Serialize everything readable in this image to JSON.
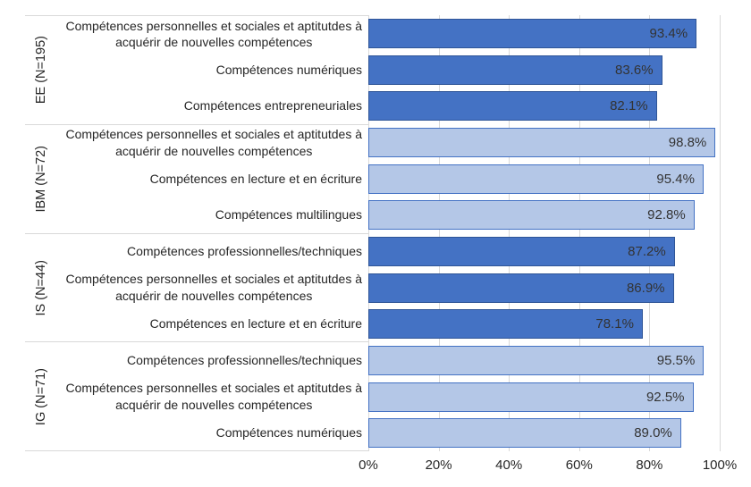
{
  "chart_data": {
    "type": "bar",
    "orientation": "horizontal",
    "title": "",
    "xlabel": "",
    "ylabel": "",
    "xlim": [
      0,
      100
    ],
    "grid": true,
    "legend": "none",
    "x_ticks": [
      "0%",
      "20%",
      "40%",
      "60%",
      "80%",
      "100%"
    ],
    "groups": [
      {
        "name": "EE (N=195)",
        "shade": "dark",
        "bars": [
          {
            "label_lines": [
              "Compétences personnelles et sociales et aptitutdes à",
              "acquérir de nouvelles compétences"
            ],
            "value": 93.4,
            "value_label": "93.4%"
          },
          {
            "label_lines": [
              "Compétences numériques"
            ],
            "value": 83.6,
            "value_label": "83.6%"
          },
          {
            "label_lines": [
              "Compétences entrepreneuriales"
            ],
            "value": 82.1,
            "value_label": "82.1%"
          }
        ]
      },
      {
        "name": "IBM (N=72)",
        "shade": "light",
        "bars": [
          {
            "label_lines": [
              "Compétences personnelles et sociales et aptitutdes à",
              "acquérir de nouvelles compétences"
            ],
            "value": 98.8,
            "value_label": "98.8%"
          },
          {
            "label_lines": [
              "Compétences en lecture et en écriture"
            ],
            "value": 95.4,
            "value_label": "95.4%"
          },
          {
            "label_lines": [
              "Compétences multilingues"
            ],
            "value": 92.8,
            "value_label": "92.8%"
          }
        ]
      },
      {
        "name": "IS (N=44)",
        "shade": "dark",
        "bars": [
          {
            "label_lines": [
              "Compétences professionnelles/techniques"
            ],
            "value": 87.2,
            "value_label": "87.2%"
          },
          {
            "label_lines": [
              "Compétences personnelles et sociales et aptitutdes à",
              "acquérir de nouvelles compétences"
            ],
            "value": 86.9,
            "value_label": "86.9%"
          },
          {
            "label_lines": [
              "Compétences en lecture et en écriture"
            ],
            "value": 78.1,
            "value_label": "78.1%"
          }
        ]
      },
      {
        "name": "IG (N=71)",
        "shade": "light",
        "bars": [
          {
            "label_lines": [
              "Compétences professionnelles/techniques"
            ],
            "value": 95.5,
            "value_label": "95.5%"
          },
          {
            "label_lines": [
              "Compétences personnelles et sociales et aptitutdes à",
              "acquérir de nouvelles compétences"
            ],
            "value": 92.5,
            "value_label": "92.5%"
          },
          {
            "label_lines": [
              "Compétences numériques"
            ],
            "value": 89.0,
            "value_label": "89.0%"
          }
        ]
      }
    ],
    "colors": {
      "dark_fill": "#4472C4",
      "dark_border": "#2F5597",
      "light_fill": "#B4C7E7",
      "light_border": "#4472C4",
      "gridline": "#D9D9D9",
      "separator": "#D9D9D9",
      "label_text": "#262626",
      "value_text": "#333333",
      "tick_text": "#262626"
    }
  }
}
